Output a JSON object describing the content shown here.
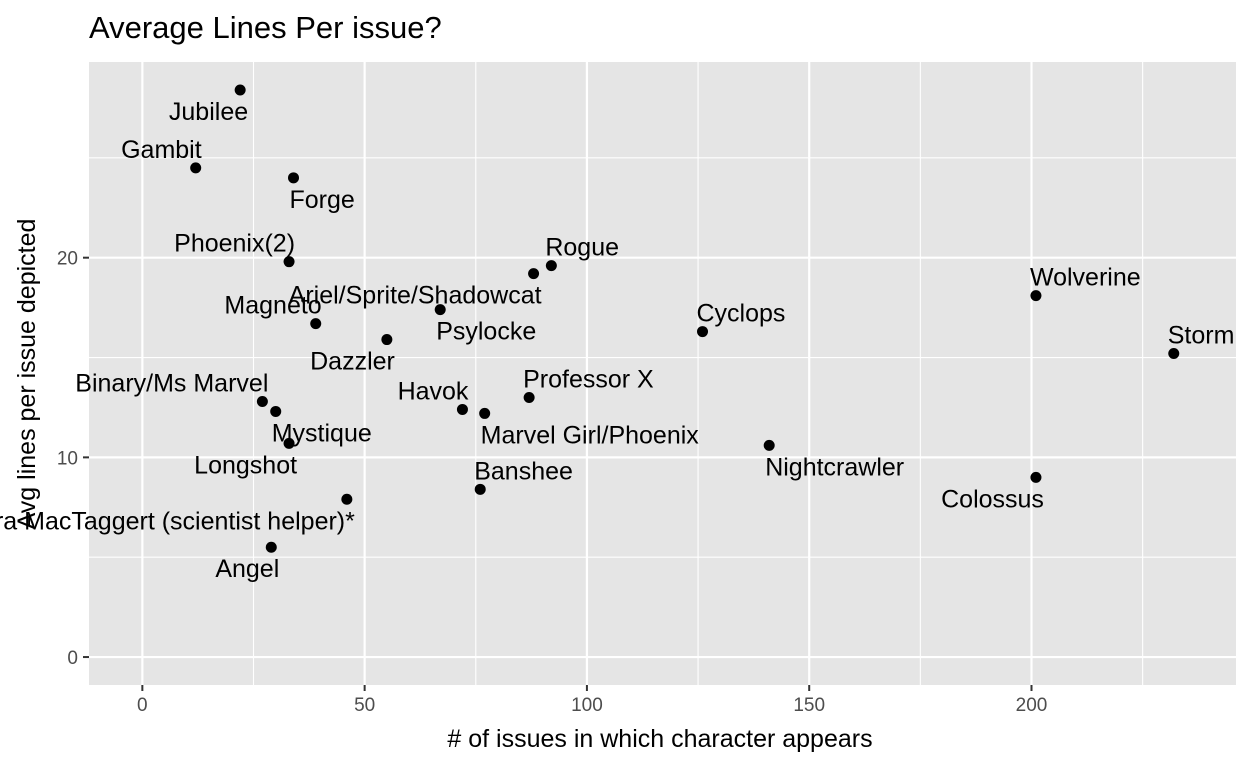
{
  "chart_data": {
    "type": "scatter",
    "title": "Average Lines Per issue?",
    "xlabel": "# of issues in which character appears",
    "ylabel": "Avg lines per issue depicted",
    "xlim": [
      -12,
      246
    ],
    "ylim": [
      -1.4,
      29.8
    ],
    "x_ticks": [
      0,
      50,
      100,
      150,
      200
    ],
    "x_tick_labels": [
      "0",
      "50",
      "100",
      "150",
      "200"
    ],
    "x_minor_ticks": [
      25,
      75,
      125,
      175,
      225
    ],
    "y_ticks": [
      0,
      10,
      20
    ],
    "y_tick_labels": [
      "0",
      "10",
      "20"
    ],
    "y_minor_ticks": [
      5,
      15,
      25
    ],
    "grid": true,
    "background": "#e5e5e5",
    "grid_color": "#ffffff",
    "point_color": "#000000",
    "points": [
      {
        "label": "Jubilee",
        "x": 22,
        "y": 28.4,
        "label_pos": "below-left"
      },
      {
        "label": "Gambit",
        "x": 12,
        "y": 24.5,
        "label_pos": "above-left"
      },
      {
        "label": "Forge",
        "x": 34,
        "y": 24.0,
        "label_pos": "below-right"
      },
      {
        "label": "Phoenix(2)",
        "x": 33,
        "y": 19.8,
        "label_pos": "above-left"
      },
      {
        "label": "Rogue",
        "x": 92,
        "y": 19.6,
        "label_pos": "above-right"
      },
      {
        "label": "Ariel/Sprite/Shadowcat",
        "x": 88,
        "y": 19.2,
        "label_pos": "below-left"
      },
      {
        "label": "Wolverine",
        "x": 201,
        "y": 18.1,
        "label_pos": "above-right"
      },
      {
        "label": "Psylocke",
        "x": 67,
        "y": 17.4,
        "label_pos": "below-right"
      },
      {
        "label": "Magneto",
        "x": 39,
        "y": 16.7,
        "label_pos": "above-left"
      },
      {
        "label": "Cyclops",
        "x": 126,
        "y": 16.3,
        "label_pos": "above-right"
      },
      {
        "label": "Dazzler",
        "x": 55,
        "y": 15.9,
        "label_pos": "below-left"
      },
      {
        "label": "Storm",
        "x": 232,
        "y": 15.2,
        "label_pos": "above-right"
      },
      {
        "label": "Professor X",
        "x": 87,
        "y": 13.0,
        "label_pos": "above-right"
      },
      {
        "label": "Binary/Ms Marvel",
        "x": 27,
        "y": 12.8,
        "label_pos": "above-left"
      },
      {
        "label": "Havok",
        "x": 72,
        "y": 12.4,
        "label_pos": "above-left"
      },
      {
        "label": "Mystique",
        "x": 30,
        "y": 12.3,
        "label_pos": "below-right"
      },
      {
        "label": "Marvel Girl/Phoenix",
        "x": 77,
        "y": 12.2,
        "label_pos": "below-right"
      },
      {
        "label": "Longshot",
        "x": 33,
        "y": 10.7,
        "label_pos": "below-left"
      },
      {
        "label": "Nightcrawler",
        "x": 141,
        "y": 10.6,
        "label_pos": "below-right"
      },
      {
        "label": "Colossus",
        "x": 201,
        "y": 9.0,
        "label_pos": "below-left"
      },
      {
        "label": "Banshee",
        "x": 76,
        "y": 8.4,
        "label_pos": "above-right"
      },
      {
        "label": "Moira MacTaggert (scientist helper)*",
        "x": 46,
        "y": 7.9,
        "label_pos": "below-left"
      },
      {
        "label": "Angel",
        "x": 29,
        "y": 5.5,
        "label_pos": "below-left"
      }
    ]
  }
}
